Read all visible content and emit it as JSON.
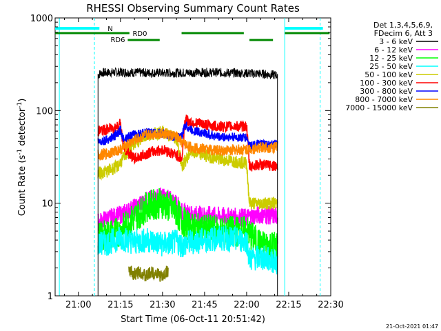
{
  "chart_data": {
    "type": "line",
    "title": "RHESSI Observing Summary Count Rates",
    "xlabel": "Start Time (06-Oct-11 20:51:42)",
    "ylabel_main": "Count Rate (s",
    "ylabel_sup1": "-1",
    "ylabel_mid": " detector",
    "ylabel_sup2": "-1",
    "ylabel_end": ")",
    "y_scale": "log",
    "ylim": [
      1,
      1000
    ],
    "xlim_min": [
      51.7,
      150
    ],
    "x_ticks": [
      {
        "label": "21:00",
        "min": 60
      },
      {
        "label": "21:15",
        "min": 75
      },
      {
        "label": "21:30",
        "min": 90
      },
      {
        "label": "21:45",
        "min": 105
      },
      {
        "label": "22:00",
        "min": 120
      },
      {
        "label": "22:15",
        "min": 135
      },
      {
        "label": "22:30",
        "min": 150
      }
    ],
    "y_ticks": [
      {
        "label": "1",
        "value": 1
      },
      {
        "label": "10",
        "value": 10
      },
      {
        "label": "100",
        "value": 100
      },
      {
        "label": "1000",
        "value": 1000
      }
    ],
    "legend_header": [
      "Det 1,3,4,5,6,9,",
      "FDecim 6, Att 3"
    ],
    "legend_position": "right",
    "footer_date": "21-Oct-2021 01:47",
    "flags": {
      "N_label": "N",
      "RD0_label": "RD0",
      "RD6_label": "RD6"
    },
    "series": [
      {
        "name": "3 - 6 keV",
        "color": "#000000",
        "points": [
          [
            67,
            240
          ],
          [
            68,
            255
          ],
          [
            75,
            260
          ],
          [
            85,
            255
          ],
          [
            95,
            255
          ],
          [
            105,
            258
          ],
          [
            115,
            255
          ],
          [
            125,
            250
          ],
          [
            131,
            240
          ]
        ]
      },
      {
        "name": "6 - 12 keV",
        "color": "#ff00ff",
        "points": [
          [
            67,
            6.2
          ],
          [
            70,
            6.8
          ],
          [
            75,
            7.5
          ],
          [
            80,
            9
          ],
          [
            85,
            11
          ],
          [
            90,
            12
          ],
          [
            95,
            10
          ],
          [
            97,
            8
          ],
          [
            100,
            7.6
          ],
          [
            110,
            7.3
          ],
          [
            120,
            7.0
          ],
          [
            121,
            7.2
          ],
          [
            125,
            7.5
          ],
          [
            131,
            7.2
          ]
        ]
      },
      {
        "name": "12 - 25 keV",
        "color": "#00ff00",
        "points": [
          [
            67,
            4.3
          ],
          [
            70,
            4.5
          ],
          [
            75,
            5
          ],
          [
            80,
            7
          ],
          [
            85,
            9.5
          ],
          [
            90,
            10
          ],
          [
            95,
            8
          ],
          [
            97,
            6.5
          ],
          [
            100,
            5.4
          ],
          [
            110,
            5
          ],
          [
            120,
            5
          ],
          [
            125,
            3.5
          ],
          [
            131,
            3.5
          ]
        ]
      },
      {
        "name": "25 - 50 keV",
        "color": "#00ffff",
        "points": [
          [
            67,
            3.6
          ],
          [
            70,
            3.7
          ],
          [
            75,
            4.2
          ],
          [
            80,
            3.8
          ],
          [
            85,
            4
          ],
          [
            90,
            3.6
          ],
          [
            95,
            3.8
          ],
          [
            97,
            3.5
          ],
          [
            100,
            3.8
          ],
          [
            110,
            4.2
          ],
          [
            120,
            4.0
          ],
          [
            121,
            2.5
          ],
          [
            125,
            2.6
          ],
          [
            131,
            2.3
          ]
        ]
      },
      {
        "name": "50 - 100 keV",
        "color": "#cccc00",
        "points": [
          [
            67,
            21
          ],
          [
            70,
            22
          ],
          [
            74,
            25
          ],
          [
            80,
            45
          ],
          [
            85,
            55
          ],
          [
            90,
            58
          ],
          [
            95,
            50
          ],
          [
            97,
            25
          ],
          [
            100,
            36
          ],
          [
            110,
            30
          ],
          [
            120,
            27
          ],
          [
            121,
            10
          ],
          [
            125,
            10
          ],
          [
            131,
            10
          ]
        ]
      },
      {
        "name": "100 - 300 keV",
        "color": "#ff0000",
        "points": [
          [
            67,
            60
          ],
          [
            70,
            62
          ],
          [
            74,
            68
          ],
          [
            75,
            75
          ],
          [
            76,
            40
          ],
          [
            80,
            30
          ],
          [
            85,
            35
          ],
          [
            90,
            38
          ],
          [
            95,
            33
          ],
          [
            97,
            30
          ],
          [
            98,
            80
          ],
          [
            100,
            75
          ],
          [
            110,
            67
          ],
          [
            120,
            68
          ],
          [
            121,
            25
          ],
          [
            125,
            26
          ],
          [
            131,
            25
          ]
        ]
      },
      {
        "name": "300 - 800 keV",
        "color": "#0000ff",
        "points": [
          [
            67,
            46
          ],
          [
            70,
            48
          ],
          [
            74,
            55
          ],
          [
            75,
            62
          ],
          [
            76,
            50
          ],
          [
            80,
            55
          ],
          [
            85,
            58
          ],
          [
            90,
            56
          ],
          [
            95,
            52
          ],
          [
            97,
            53
          ],
          [
            98,
            70
          ],
          [
            100,
            62
          ],
          [
            110,
            52
          ],
          [
            120,
            51
          ],
          [
            121,
            42
          ],
          [
            125,
            43
          ],
          [
            131,
            43
          ]
        ]
      },
      {
        "name": "800 - 7000 keV",
        "color": "#ff8800",
        "points": [
          [
            67,
            33
          ],
          [
            70,
            34
          ],
          [
            75,
            38
          ],
          [
            80,
            48
          ],
          [
            85,
            55
          ],
          [
            90,
            57
          ],
          [
            95,
            52
          ],
          [
            97,
            45
          ],
          [
            100,
            40
          ],
          [
            110,
            37
          ],
          [
            120,
            38
          ],
          [
            125,
            40
          ],
          [
            131,
            40
          ]
        ]
      },
      {
        "name": "7000 - 15000 keV",
        "color": "#808000",
        "points": [
          [
            78,
            1.9
          ],
          [
            80,
            1.7
          ],
          [
            82,
            1.85
          ],
          [
            84,
            1.6
          ],
          [
            86,
            1.8
          ],
          [
            88,
            1.75
          ],
          [
            90,
            1.6
          ],
          [
            92,
            1.9
          ]
        ]
      }
    ]
  }
}
